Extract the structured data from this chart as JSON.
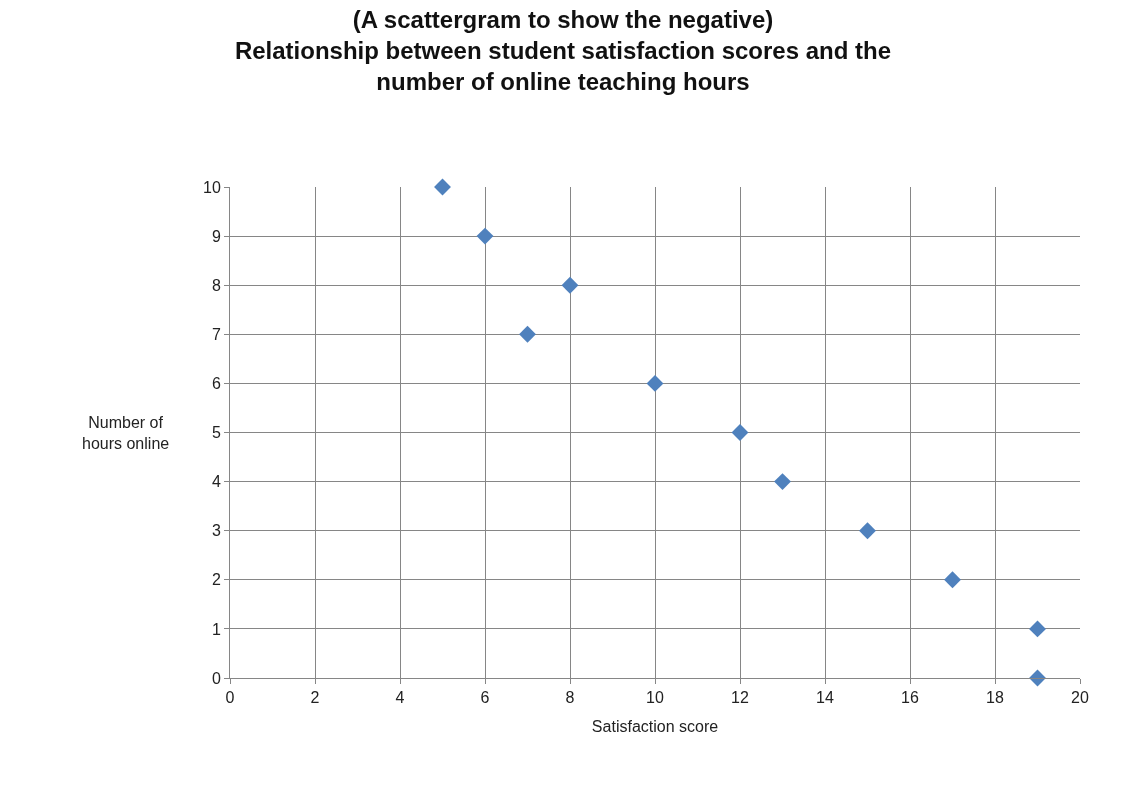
{
  "chart_data": {
    "type": "scatter",
    "title": "(A scattergram to show the negative)\nRelationship between student satisfaction scores and the\nnumber of online teaching hours",
    "xlabel": "Satisfaction score",
    "ylabel": "Number of\nhours online",
    "x": [
      5,
      6,
      7,
      8,
      10,
      12,
      13,
      15,
      17,
      19,
      19
    ],
    "series": [
      {
        "color": "#4f81bd",
        "values": [
          10,
          9,
          7,
          8,
          6,
          5,
          4,
          3,
          2,
          1,
          0
        ]
      }
    ],
    "xlim": [
      0,
      20
    ],
    "xticks": [
      0,
      2,
      4,
      6,
      8,
      10,
      12,
      14,
      16,
      18,
      20
    ],
    "ylim": [
      0,
      10
    ],
    "yticks": [
      0,
      1,
      2,
      3,
      4,
      5,
      6,
      7,
      8,
      9,
      10
    ],
    "grid": true,
    "marker": "diamond",
    "legend": false
  }
}
